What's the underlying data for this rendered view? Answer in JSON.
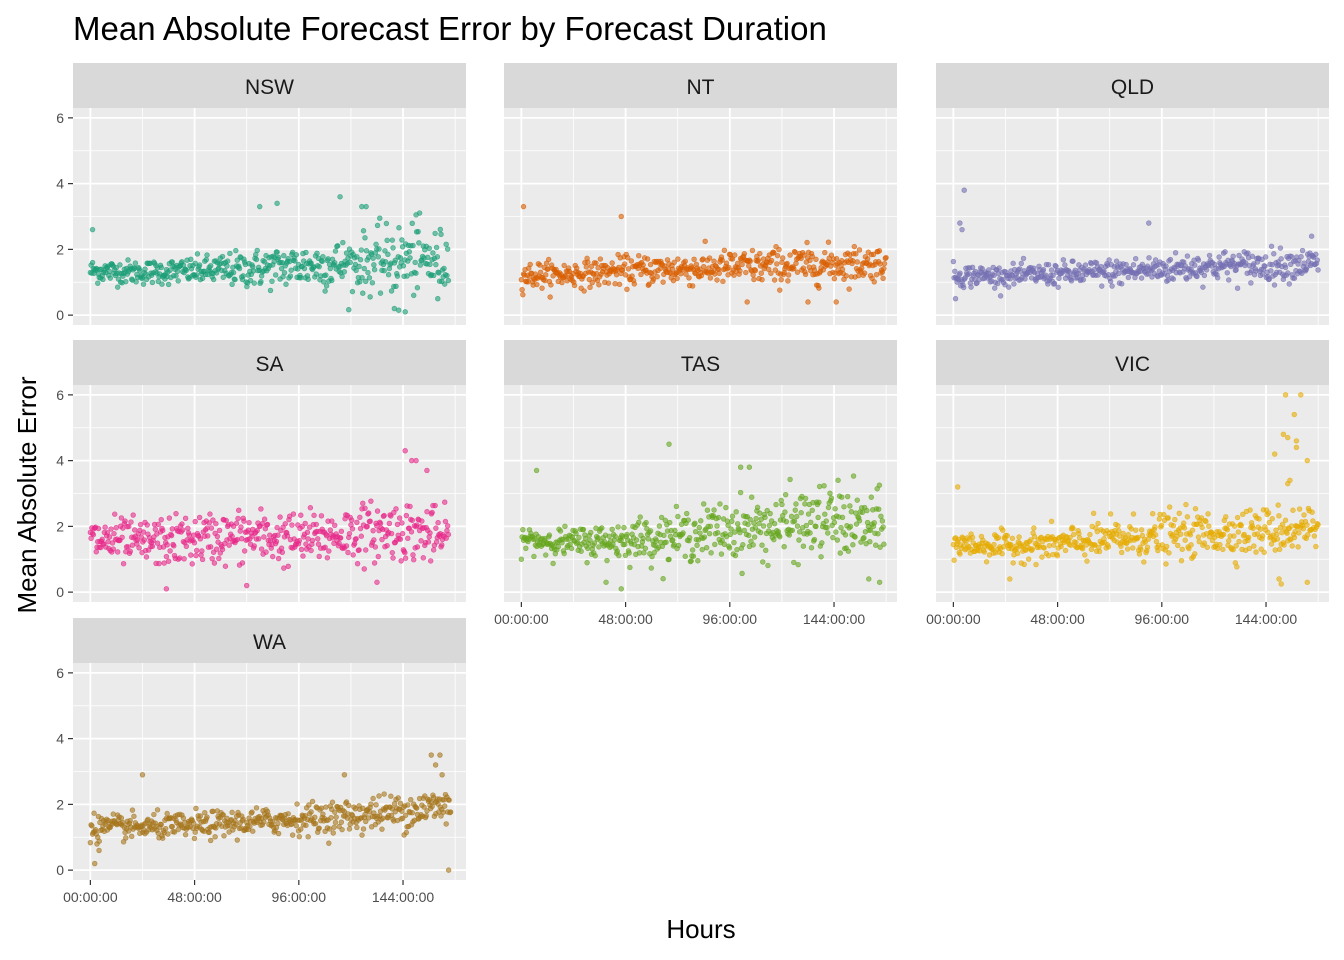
{
  "chart_data": {
    "type": "scatter",
    "title": "Mean Absolute Forecast Error by Forecast Duration",
    "xlabel": "Hours",
    "ylabel": "Mean Absolute Error",
    "xlim_hours": [
      -8,
      173
    ],
    "ylim": [
      -0.3,
      6.3
    ],
    "x_ticks": [
      {
        "value": 0,
        "label": "00:00:00"
      },
      {
        "value": 48,
        "label": "48:00:00"
      },
      {
        "value": 96,
        "label": "96:00:00"
      },
      {
        "value": 144,
        "label": "144:00:00"
      }
    ],
    "y_ticks": [
      {
        "value": 0,
        "label": "0"
      },
      {
        "value": 2,
        "label": "2"
      },
      {
        "value": 4,
        "label": "4"
      },
      {
        "value": 6,
        "label": "6"
      }
    ],
    "grid": true,
    "facet_layout": "3 columns, shared axes",
    "point_alpha": 0.6,
    "trend_hours": [
      0,
      24,
      48,
      72,
      96,
      120,
      144,
      168
    ],
    "panels": [
      {
        "name": "NSW",
        "color": "#1b9e77",
        "x_max": 165,
        "trend": [
          1.35,
          1.3,
          1.35,
          1.4,
          1.5,
          1.55,
          1.7,
          1.6
        ],
        "spread": [
          0.18,
          0.18,
          0.2,
          0.28,
          0.33,
          0.4,
          0.55,
          0.45
        ],
        "outliers": [
          [
            1,
            2.6
          ],
          [
            78,
            3.3
          ],
          [
            86,
            3.4
          ],
          [
            115,
            3.6
          ],
          [
            125,
            3.3
          ],
          [
            127,
            3.3
          ],
          [
            150,
            3.05
          ],
          [
            140,
            0.2
          ],
          [
            142,
            0.15
          ],
          [
            145,
            0.1
          ],
          [
            160,
            0.5
          ]
        ]
      },
      {
        "name": "NT",
        "color": "#d95f02",
        "x_max": 168,
        "trend": [
          1.2,
          1.25,
          1.35,
          1.4,
          1.45,
          1.5,
          1.55,
          1.6
        ],
        "spread": [
          0.2,
          0.2,
          0.22,
          0.25,
          0.25,
          0.28,
          0.28,
          0.25
        ],
        "outliers": [
          [
            1,
            3.3
          ],
          [
            46,
            3.0
          ],
          [
            104,
            0.4
          ],
          [
            132,
            0.4
          ],
          [
            145,
            0.4
          ]
        ]
      },
      {
        "name": "QLD",
        "color": "#7570b3",
        "x_max": 168,
        "trend": [
          1.2,
          1.2,
          1.25,
          1.3,
          1.4,
          1.5,
          1.5,
          1.6
        ],
        "spread": [
          0.18,
          0.15,
          0.18,
          0.2,
          0.22,
          0.22,
          0.25,
          0.2
        ],
        "outliers": [
          [
            5,
            3.8
          ],
          [
            3,
            2.8
          ],
          [
            4,
            2.6
          ],
          [
            90,
            2.8
          ],
          [
            165,
            2.4
          ],
          [
            1,
            0.5
          ]
        ]
      },
      {
        "name": "SA",
        "color": "#e7298a",
        "x_max": 165,
        "trend": [
          1.6,
          1.5,
          1.6,
          1.7,
          1.6,
          1.8,
          1.9,
          1.6
        ],
        "spread": [
          0.35,
          0.35,
          0.38,
          0.4,
          0.4,
          0.42,
          0.45,
          0.4
        ],
        "outliers": [
          [
            145,
            4.3
          ],
          [
            148,
            4.0
          ],
          [
            150,
            4.0
          ],
          [
            155,
            3.7
          ],
          [
            35,
            0.1
          ],
          [
            72,
            0.2
          ],
          [
            132,
            0.3
          ]
        ]
      },
      {
        "name": "TAS",
        "color": "#66a61e",
        "x_max": 167,
        "trend": [
          1.6,
          1.5,
          1.6,
          1.7,
          1.9,
          2.0,
          2.2,
          1.9
        ],
        "spread": [
          0.2,
          0.22,
          0.3,
          0.35,
          0.45,
          0.5,
          0.55,
          0.5
        ],
        "outliers": [
          [
            7,
            3.7
          ],
          [
            68,
            4.5
          ],
          [
            101,
            3.8
          ],
          [
            105,
            3.8
          ],
          [
            39,
            0.3
          ],
          [
            46,
            0.1
          ],
          [
            160,
            0.4
          ],
          [
            165,
            0.3
          ]
        ]
      },
      {
        "name": "VIC",
        "color": "#e6ab02",
        "x_max": 168,
        "trend": [
          1.45,
          1.4,
          1.45,
          1.6,
          1.7,
          1.8,
          1.85,
          2.0
        ],
        "spread": [
          0.2,
          0.2,
          0.25,
          0.3,
          0.35,
          0.35,
          0.35,
          0.4
        ],
        "outliers": [
          [
            153,
            6.0
          ],
          [
            160,
            6.0
          ],
          [
            157,
            5.4
          ],
          [
            152,
            4.8
          ],
          [
            154,
            4.7
          ],
          [
            158,
            4.6
          ],
          [
            158,
            4.4
          ],
          [
            148,
            4.2
          ],
          [
            163,
            4.0
          ],
          [
            155,
            3.4
          ],
          [
            154,
            3.3
          ],
          [
            150,
            0.4
          ],
          [
            151,
            0.25
          ],
          [
            163,
            0.3
          ],
          [
            2,
            3.2
          ],
          [
            26,
            0.4
          ]
        ]
      },
      {
        "name": "WA",
        "color": "#a6761d",
        "x_max": 166,
        "trend": [
          1.3,
          1.3,
          1.35,
          1.45,
          1.55,
          1.65,
          1.8,
          2.0
        ],
        "spread": [
          0.2,
          0.18,
          0.2,
          0.2,
          0.22,
          0.25,
          0.28,
          0.3
        ],
        "outliers": [
          [
            24,
            2.9
          ],
          [
            117,
            2.9
          ],
          [
            157,
            3.5
          ],
          [
            161,
            3.5
          ],
          [
            159,
            3.2
          ],
          [
            162,
            2.9
          ],
          [
            2,
            0.2
          ],
          [
            165,
            0.0
          ],
          [
            4,
            0.6
          ]
        ]
      }
    ]
  }
}
